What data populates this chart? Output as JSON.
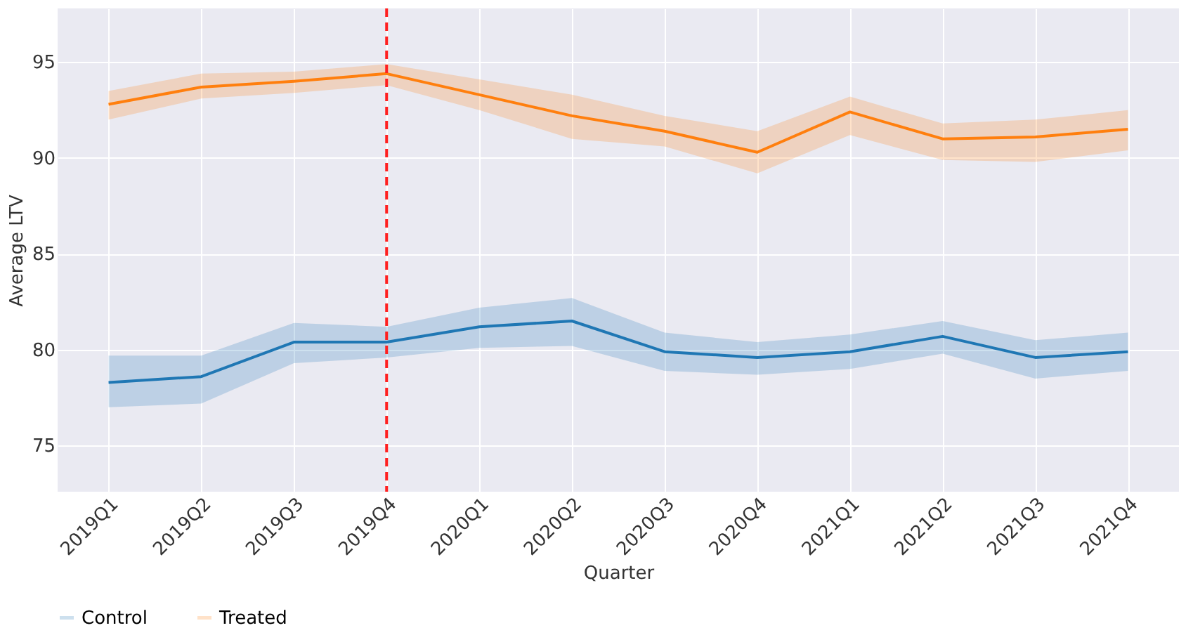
{
  "chart_data": {
    "type": "line",
    "xlabel": "Quarter",
    "ylabel": "Average LTV",
    "categories": [
      "2019Q1",
      "2019Q2",
      "2019Q3",
      "2019Q4",
      "2020Q1",
      "2020Q2",
      "2020Q3",
      "2020Q4",
      "2021Q1",
      "2021Q2",
      "2021Q3",
      "2021Q4"
    ],
    "series": [
      {
        "name": "Control",
        "color": "#1f77b4",
        "values": [
          78.3,
          78.6,
          80.4,
          80.4,
          81.2,
          81.5,
          79.9,
          79.6,
          79.9,
          80.7,
          79.6,
          79.9
        ],
        "lower": [
          77.0,
          77.2,
          79.3,
          79.6,
          80.1,
          80.2,
          78.9,
          78.7,
          79.0,
          79.8,
          78.5,
          78.9
        ],
        "upper": [
          79.7,
          79.7,
          81.4,
          81.2,
          82.2,
          82.7,
          80.9,
          80.4,
          80.8,
          81.5,
          80.5,
          80.9
        ]
      },
      {
        "name": "Treated",
        "color": "#ff7f0e",
        "values": [
          92.8,
          93.7,
          94.0,
          94.4,
          93.3,
          92.2,
          91.4,
          90.3,
          92.4,
          91.0,
          91.1,
          91.5
        ],
        "lower": [
          92.0,
          93.1,
          93.4,
          93.8,
          92.5,
          91.0,
          90.6,
          89.2,
          91.2,
          89.9,
          89.8,
          90.4
        ],
        "upper": [
          93.5,
          94.4,
          94.5,
          94.9,
          94.1,
          93.3,
          92.2,
          91.4,
          93.2,
          91.8,
          92.0,
          92.5
        ]
      }
    ],
    "ylim": [
      72.6,
      97.8
    ],
    "yticks": [
      75,
      80,
      85,
      90,
      95
    ],
    "ref_lines": [
      {
        "axis": "x",
        "value": "2019Q4",
        "color": "#ff2020",
        "line_style": "dashed"
      }
    ],
    "grid": true,
    "legend": "bottom",
    "line_style": "solid",
    "marker": "none"
  }
}
